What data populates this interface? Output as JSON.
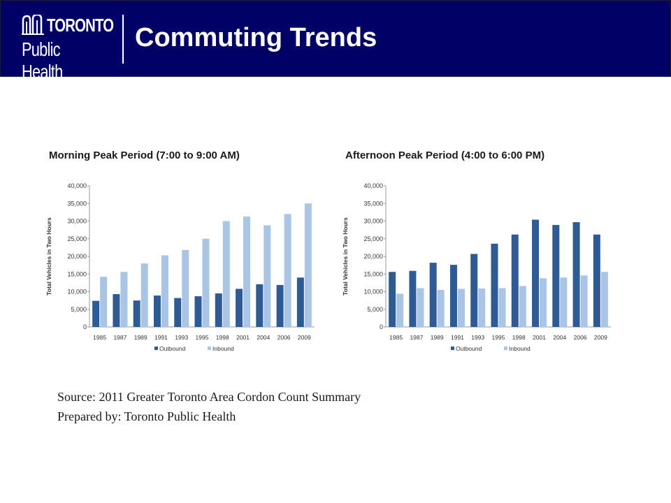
{
  "header": {
    "logo_line1": "TORONTO",
    "logo_line2": "Public Health",
    "title": "Commuting Trends"
  },
  "colors": {
    "header_bg": "#000066",
    "outbound": "#2e5b94",
    "inbound": "#a9c4e4"
  },
  "chart_data": [
    {
      "type": "bar",
      "title": "Morning Peak Period (7:00 to 9:00 AM)",
      "xlabel": "",
      "ylabel": "Total Vehicles in Two Hours",
      "ylim": [
        0,
        40000
      ],
      "yticks": [
        "0",
        "5,000",
        "10,000",
        "15,000",
        "20,000",
        "25,000",
        "30,000",
        "35,000",
        "40,000"
      ],
      "categories": [
        "1985",
        "1987",
        "1989",
        "1991",
        "1993",
        "1995",
        "1998",
        "2001",
        "2004",
        "2006",
        "2009"
      ],
      "series": [
        {
          "name": "Outbound",
          "values": [
            7400,
            9300,
            7500,
            8900,
            8200,
            8700,
            9500,
            10800,
            12100,
            11900,
            14000
          ]
        },
        {
          "name": "Inbound",
          "values": [
            14200,
            15600,
            18000,
            20300,
            21800,
            25000,
            30000,
            31300,
            28800,
            32000,
            35000
          ]
        }
      ],
      "legend": "bottom",
      "grid": false
    },
    {
      "type": "bar",
      "title": "Afternoon Peak Period (4:00 to 6:00 PM)",
      "xlabel": "",
      "ylabel": "Total Vehicles in Two Hours",
      "ylim": [
        0,
        40000
      ],
      "yticks": [
        "0",
        "5,000",
        "10,000",
        "15,000",
        "20,000",
        "25,000",
        "30,000",
        "35,000",
        "40,000"
      ],
      "categories": [
        "1985",
        "1987",
        "1989",
        "1991",
        "1993",
        "1995",
        "1998",
        "2001",
        "2004",
        "2006",
        "2009"
      ],
      "series": [
        {
          "name": "Outbound",
          "values": [
            15600,
            15900,
            18200,
            17600,
            20700,
            23600,
            26200,
            30400,
            28900,
            29700,
            26200
          ]
        },
        {
          "name": "Inbound",
          "values": [
            9400,
            11000,
            10500,
            10800,
            10900,
            11000,
            11600,
            13800,
            14000,
            14600,
            15600
          ]
        }
      ],
      "legend": "bottom",
      "grid": false
    }
  ],
  "footer": {
    "source": "Source: 2011 Greater Toronto Area Cordon Count Summary",
    "prepared_by": "Prepared by: Toronto Public Health"
  }
}
